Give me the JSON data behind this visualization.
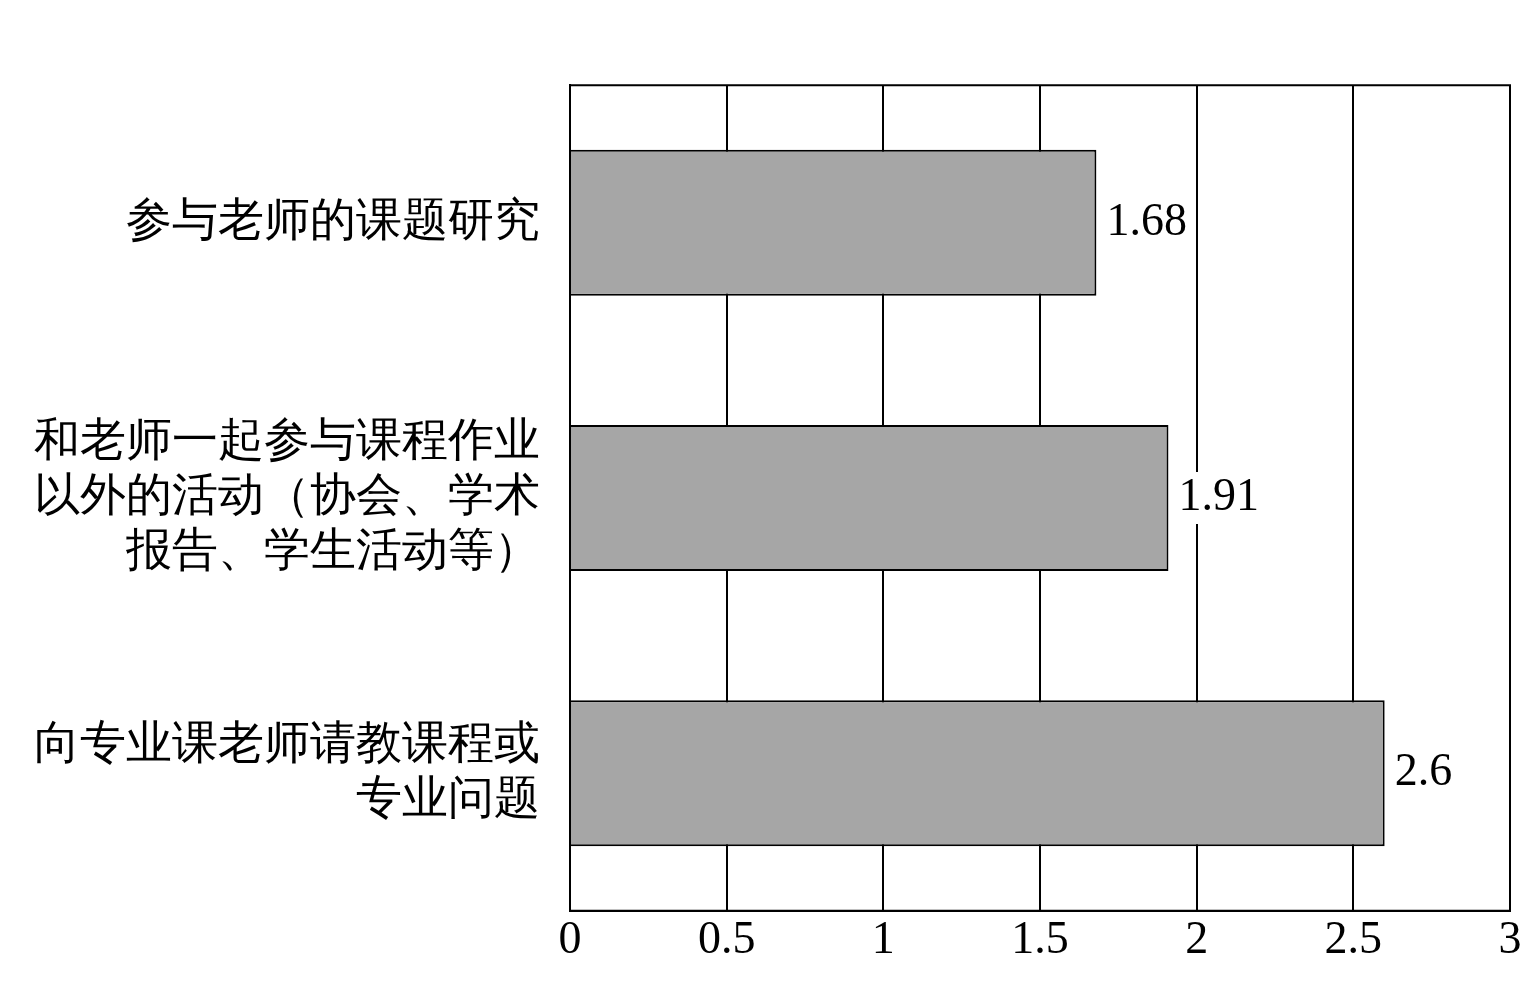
{
  "chart_data": {
    "type": "bar",
    "orientation": "horizontal",
    "categories": [
      "参与老师的课题研究",
      "和老师一起参与课程作业以外的活动（协会、学术报告、学生活动等）",
      "向专业课老师请教课程或专业问题"
    ],
    "values": [
      1.68,
      1.91,
      2.6
    ],
    "color": "#a6a6a6",
    "xlim": [
      0,
      3
    ],
    "xticks": [
      0,
      0.5,
      1,
      1.5,
      2,
      2.5,
      3
    ],
    "grid": "x",
    "data_labels": true,
    "legend": false
  }
}
